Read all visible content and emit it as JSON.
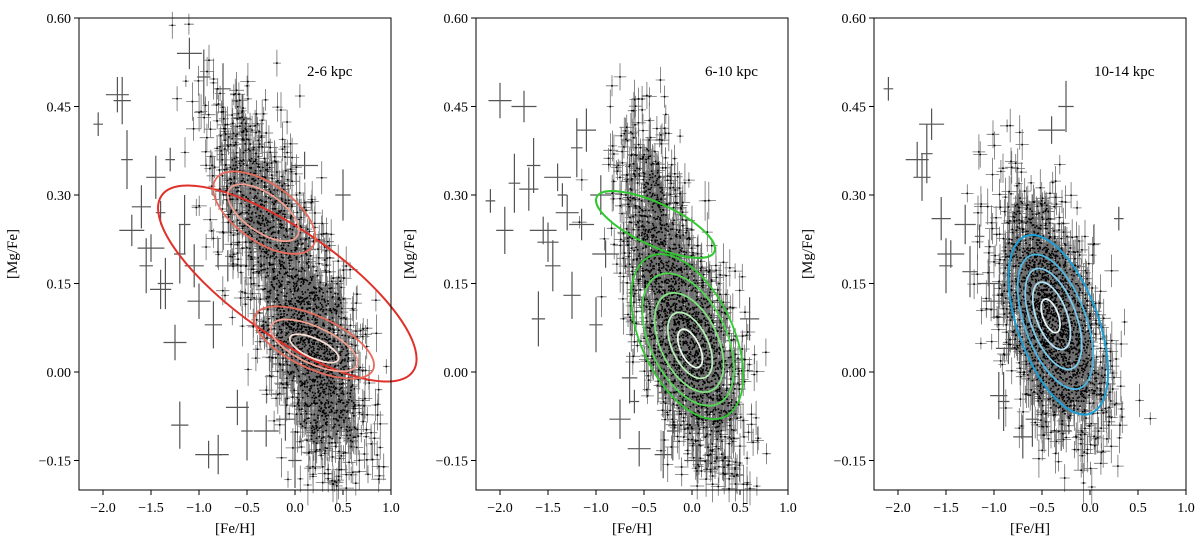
{
  "chart_data": [
    {
      "type": "scatter",
      "panel_label": "2-6 kpc",
      "xlabel": "[Fe/H]",
      "ylabel": "[Mg/Fe]",
      "xlim": [
        -2.25,
        1.0
      ],
      "ylim": [
        -0.2,
        0.6
      ],
      "xticks": [
        -2.0,
        -1.5,
        -1.0,
        -0.5,
        0.0,
        0.5,
        1.0
      ],
      "xtick_labels": [
        "−2.0",
        "−1.5",
        "−1.0",
        "−0.5",
        "0.0",
        "0.5",
        "1.0"
      ],
      "yticks": [
        -0.15,
        0.0,
        0.15,
        0.3,
        0.45,
        0.6
      ],
      "ytick_labels": [
        "−0.15",
        "0.00",
        "0.15",
        "0.30",
        "0.45",
        "0.60"
      ],
      "contour_color": "#e0302a",
      "density_peaks": [
        {
          "feh": -0.35,
          "mgfe": 0.27,
          "weight": 0.35,
          "sx": 0.22,
          "sy": 0.06
        },
        {
          "feh": 0.2,
          "mgfe": 0.04,
          "weight": 0.65,
          "sx": 0.2,
          "sy": 0.06
        }
      ],
      "contour_levels": [
        {
          "feh_center": -0.08,
          "mgfe_center": 0.15,
          "feh_halfwidth": 0.55,
          "mgfe_halfheight": 0.26,
          "tilt_deg": -55,
          "color": "#e0302a"
        },
        {
          "feh_center": -0.32,
          "mgfe_center": 0.27,
          "feh_halfwidth": 0.3,
          "mgfe_halfheight": 0.1,
          "tilt_deg": -55,
          "color": "#e86a5a"
        },
        {
          "feh_center": -0.33,
          "mgfe_center": 0.27,
          "feh_halfwidth": 0.2,
          "mgfe_halfheight": 0.07,
          "tilt_deg": -55,
          "color": "#f3a090"
        },
        {
          "feh_center": 0.2,
          "mgfe_center": 0.05,
          "feh_halfwidth": 0.27,
          "mgfe_halfheight": 0.11,
          "tilt_deg": -65,
          "color": "#e86a5a"
        },
        {
          "feh_center": 0.2,
          "mgfe_center": 0.045,
          "feh_halfwidth": 0.19,
          "mgfe_halfheight": 0.08,
          "tilt_deg": -65,
          "color": "#f3a090"
        },
        {
          "feh_center": 0.2,
          "mgfe_center": 0.04,
          "feh_halfwidth": 0.1,
          "mgfe_halfheight": 0.045,
          "tilt_deg": -65,
          "color": "#fbe0d8"
        }
      ],
      "error_bar_points": [
        [
          -2.05,
          0.42
        ],
        [
          -1.85,
          0.47
        ],
        [
          -1.8,
          0.46
        ],
        [
          -1.75,
          0.36
        ],
        [
          -1.7,
          0.24
        ],
        [
          -1.6,
          0.28
        ],
        [
          -1.55,
          0.18
        ],
        [
          -1.5,
          0.21
        ],
        [
          -1.4,
          0.14
        ],
        [
          -1.35,
          0.15
        ],
        [
          -1.3,
          0.36
        ],
        [
          -1.25,
          0.05
        ],
        [
          -1.2,
          -0.09
        ],
        [
          -1.15,
          0.25
        ],
        [
          -1.1,
          0.54
        ],
        [
          -1.05,
          0.18
        ],
        [
          -0.95,
          0.5
        ],
        [
          -0.9,
          -0.14
        ],
        [
          -0.8,
          -0.14
        ],
        [
          -0.75,
          0.48
        ],
        [
          -0.7,
          0.3
        ],
        [
          -0.6,
          -0.06
        ],
        [
          -0.55,
          0.43
        ],
        [
          -0.5,
          -0.1
        ],
        [
          -0.3,
          -0.1
        ],
        [
          -0.1,
          -0.08
        ],
        [
          0.0,
          -0.15
        ],
        [
          0.1,
          0.35
        ],
        [
          0.35,
          -0.02
        ],
        [
          0.5,
          0.3
        ],
        [
          -1.4,
          0.27
        ],
        [
          -1.0,
          0.12
        ],
        [
          -0.85,
          0.08
        ],
        [
          -1.2,
          0.2
        ],
        [
          -0.7,
          0.18
        ],
        [
          -1.45,
          0.33
        ]
      ]
    },
    {
      "type": "scatter",
      "panel_label": "6-10 kpc",
      "xlabel": "[Fe/H]",
      "ylabel": "[Mg/Fe]",
      "xlim": [
        -2.25,
        1.0
      ],
      "ylim": [
        -0.2,
        0.6
      ],
      "xticks": [
        -2.0,
        -1.5,
        -1.0,
        -0.5,
        0.0,
        0.5,
        1.0
      ],
      "xtick_labels": [
        "−2.0",
        "−1.5",
        "−1.0",
        "−0.5",
        "0.0",
        "0.5",
        "1.0"
      ],
      "yticks": [
        -0.15,
        0.0,
        0.15,
        0.3,
        0.45,
        0.6
      ],
      "ytick_labels": [
        "−0.15",
        "0.00",
        "0.15",
        "0.30",
        "0.45",
        "0.60"
      ],
      "contour_color": "#2fc92f",
      "density_peaks": [
        {
          "feh": -0.4,
          "mgfe": 0.25,
          "weight": 0.25,
          "sx": 0.15,
          "sy": 0.06
        },
        {
          "feh": -0.02,
          "mgfe": 0.045,
          "weight": 0.75,
          "sx": 0.2,
          "sy": 0.06
        }
      ],
      "contour_levels": [
        {
          "feh_center": -0.38,
          "mgfe_center": 0.25,
          "feh_halfwidth": 0.22,
          "mgfe_halfheight": 0.11,
          "tilt_deg": -65,
          "color": "#2fc92f"
        },
        {
          "feh_center": -0.05,
          "mgfe_center": 0.06,
          "feh_halfwidth": 0.48,
          "mgfe_halfheight": 0.15,
          "tilt_deg": -25,
          "color": "#2fc92f"
        },
        {
          "feh_center": -0.04,
          "mgfe_center": 0.055,
          "feh_halfwidth": 0.4,
          "mgfe_halfheight": 0.12,
          "tilt_deg": -25,
          "color": "#4fd84f"
        },
        {
          "feh_center": -0.03,
          "mgfe_center": 0.05,
          "feh_halfwidth": 0.3,
          "mgfe_halfheight": 0.09,
          "tilt_deg": -25,
          "color": "#7fe47f"
        },
        {
          "feh_center": -0.02,
          "mgfe_center": 0.045,
          "feh_halfwidth": 0.19,
          "mgfe_halfheight": 0.06,
          "tilt_deg": -25,
          "color": "#b8f0b8"
        },
        {
          "feh_center": -0.02,
          "mgfe_center": 0.04,
          "feh_halfwidth": 0.1,
          "mgfe_halfheight": 0.035,
          "tilt_deg": -25,
          "color": "#e8fbe8"
        }
      ],
      "error_bar_points": [
        [
          -2.1,
          0.29
        ],
        [
          -2.0,
          0.46
        ],
        [
          -1.95,
          0.24
        ],
        [
          -1.85,
          0.32
        ],
        [
          -1.75,
          0.45
        ],
        [
          -1.7,
          0.31
        ],
        [
          -1.65,
          0.35
        ],
        [
          -1.55,
          0.24
        ],
        [
          -1.5,
          0.22
        ],
        [
          -1.45,
          0.18
        ],
        [
          -1.35,
          0.3
        ],
        [
          -1.3,
          0.27
        ],
        [
          -1.25,
          0.13
        ],
        [
          -1.2,
          0.38
        ],
        [
          -1.15,
          0.25
        ],
        [
          -1.1,
          0.41
        ],
        [
          -1.0,
          0.08
        ],
        [
          -0.9,
          0.2
        ],
        [
          -0.75,
          -0.08
        ],
        [
          -0.65,
          -0.01
        ],
        [
          -0.6,
          -0.05
        ],
        [
          -0.55,
          -0.13
        ],
        [
          -0.3,
          -0.14
        ],
        [
          -0.2,
          -0.1
        ],
        [
          0.05,
          -0.15
        ],
        [
          0.6,
          0.09
        ],
        [
          -1.6,
          0.09
        ],
        [
          -1.4,
          0.33
        ],
        [
          -0.95,
          0.3
        ]
      ]
    },
    {
      "type": "scatter",
      "panel_label": "10-14 kpc",
      "xlabel": "[Fe/H]",
      "ylabel": "[Mg/Fe]",
      "xlim": [
        -2.25,
        1.0
      ],
      "ylim": [
        -0.2,
        0.6
      ],
      "xticks": [
        -2.0,
        -1.5,
        -1.0,
        -0.5,
        0.0,
        0.5,
        1.0
      ],
      "xtick_labels": [
        "−2.0",
        "−1.5",
        "−1.0",
        "−0.5",
        "0.0",
        "0.5",
        "1.0"
      ],
      "yticks": [
        -0.15,
        0.0,
        0.15,
        0.3,
        0.45,
        0.6
      ],
      "ytick_labels": [
        "−0.15",
        "0.00",
        "0.15",
        "0.30",
        "0.45",
        "0.60"
      ],
      "contour_color": "#1aa0d8",
      "density_peaks": [
        {
          "feh": -0.4,
          "mgfe": 0.09,
          "weight": 1.0,
          "sx": 0.2,
          "sy": 0.06
        }
      ],
      "contour_levels": [
        {
          "feh_center": -0.33,
          "mgfe_center": 0.08,
          "feh_halfwidth": 0.42,
          "mgfe_halfheight": 0.16,
          "tilt_deg": -20,
          "color": "#1aa0d8"
        },
        {
          "feh_center": -0.36,
          "mgfe_center": 0.085,
          "feh_halfwidth": 0.32,
          "mgfe_halfheight": 0.12,
          "tilt_deg": -20,
          "color": "#4ab8e4"
        },
        {
          "feh_center": -0.38,
          "mgfe_center": 0.09,
          "feh_halfwidth": 0.24,
          "mgfe_halfheight": 0.09,
          "tilt_deg": -20,
          "color": "#7acbed"
        },
        {
          "feh_center": -0.4,
          "mgfe_center": 0.095,
          "feh_halfwidth": 0.16,
          "mgfe_halfheight": 0.06,
          "tilt_deg": -20,
          "color": "#b2e2f5"
        },
        {
          "feh_center": -0.41,
          "mgfe_center": 0.095,
          "feh_halfwidth": 0.08,
          "mgfe_halfheight": 0.03,
          "tilt_deg": -20,
          "color": "#e6f6fd"
        }
      ],
      "error_bar_points": [
        [
          -2.1,
          0.48
        ],
        [
          -1.8,
          0.36
        ],
        [
          -1.75,
          0.33
        ],
        [
          -1.7,
          0.37
        ],
        [
          -1.65,
          0.42
        ],
        [
          -1.55,
          0.26
        ],
        [
          -1.5,
          0.18
        ],
        [
          -1.45,
          0.2
        ],
        [
          -1.3,
          0.25
        ],
        [
          -1.25,
          0.17
        ],
        [
          -1.15,
          0.23
        ],
        [
          -1.05,
          0.15
        ],
        [
          -0.95,
          -0.04
        ],
        [
          -0.9,
          -0.05
        ],
        [
          -0.85,
          0.04
        ],
        [
          -0.7,
          -0.11
        ],
        [
          -0.6,
          -0.08
        ],
        [
          -0.4,
          0.41
        ],
        [
          -0.3,
          -0.1
        ],
        [
          -0.25,
          0.45
        ],
        [
          0.3,
          0.26
        ],
        [
          -1.0,
          0.12
        ]
      ]
    }
  ]
}
